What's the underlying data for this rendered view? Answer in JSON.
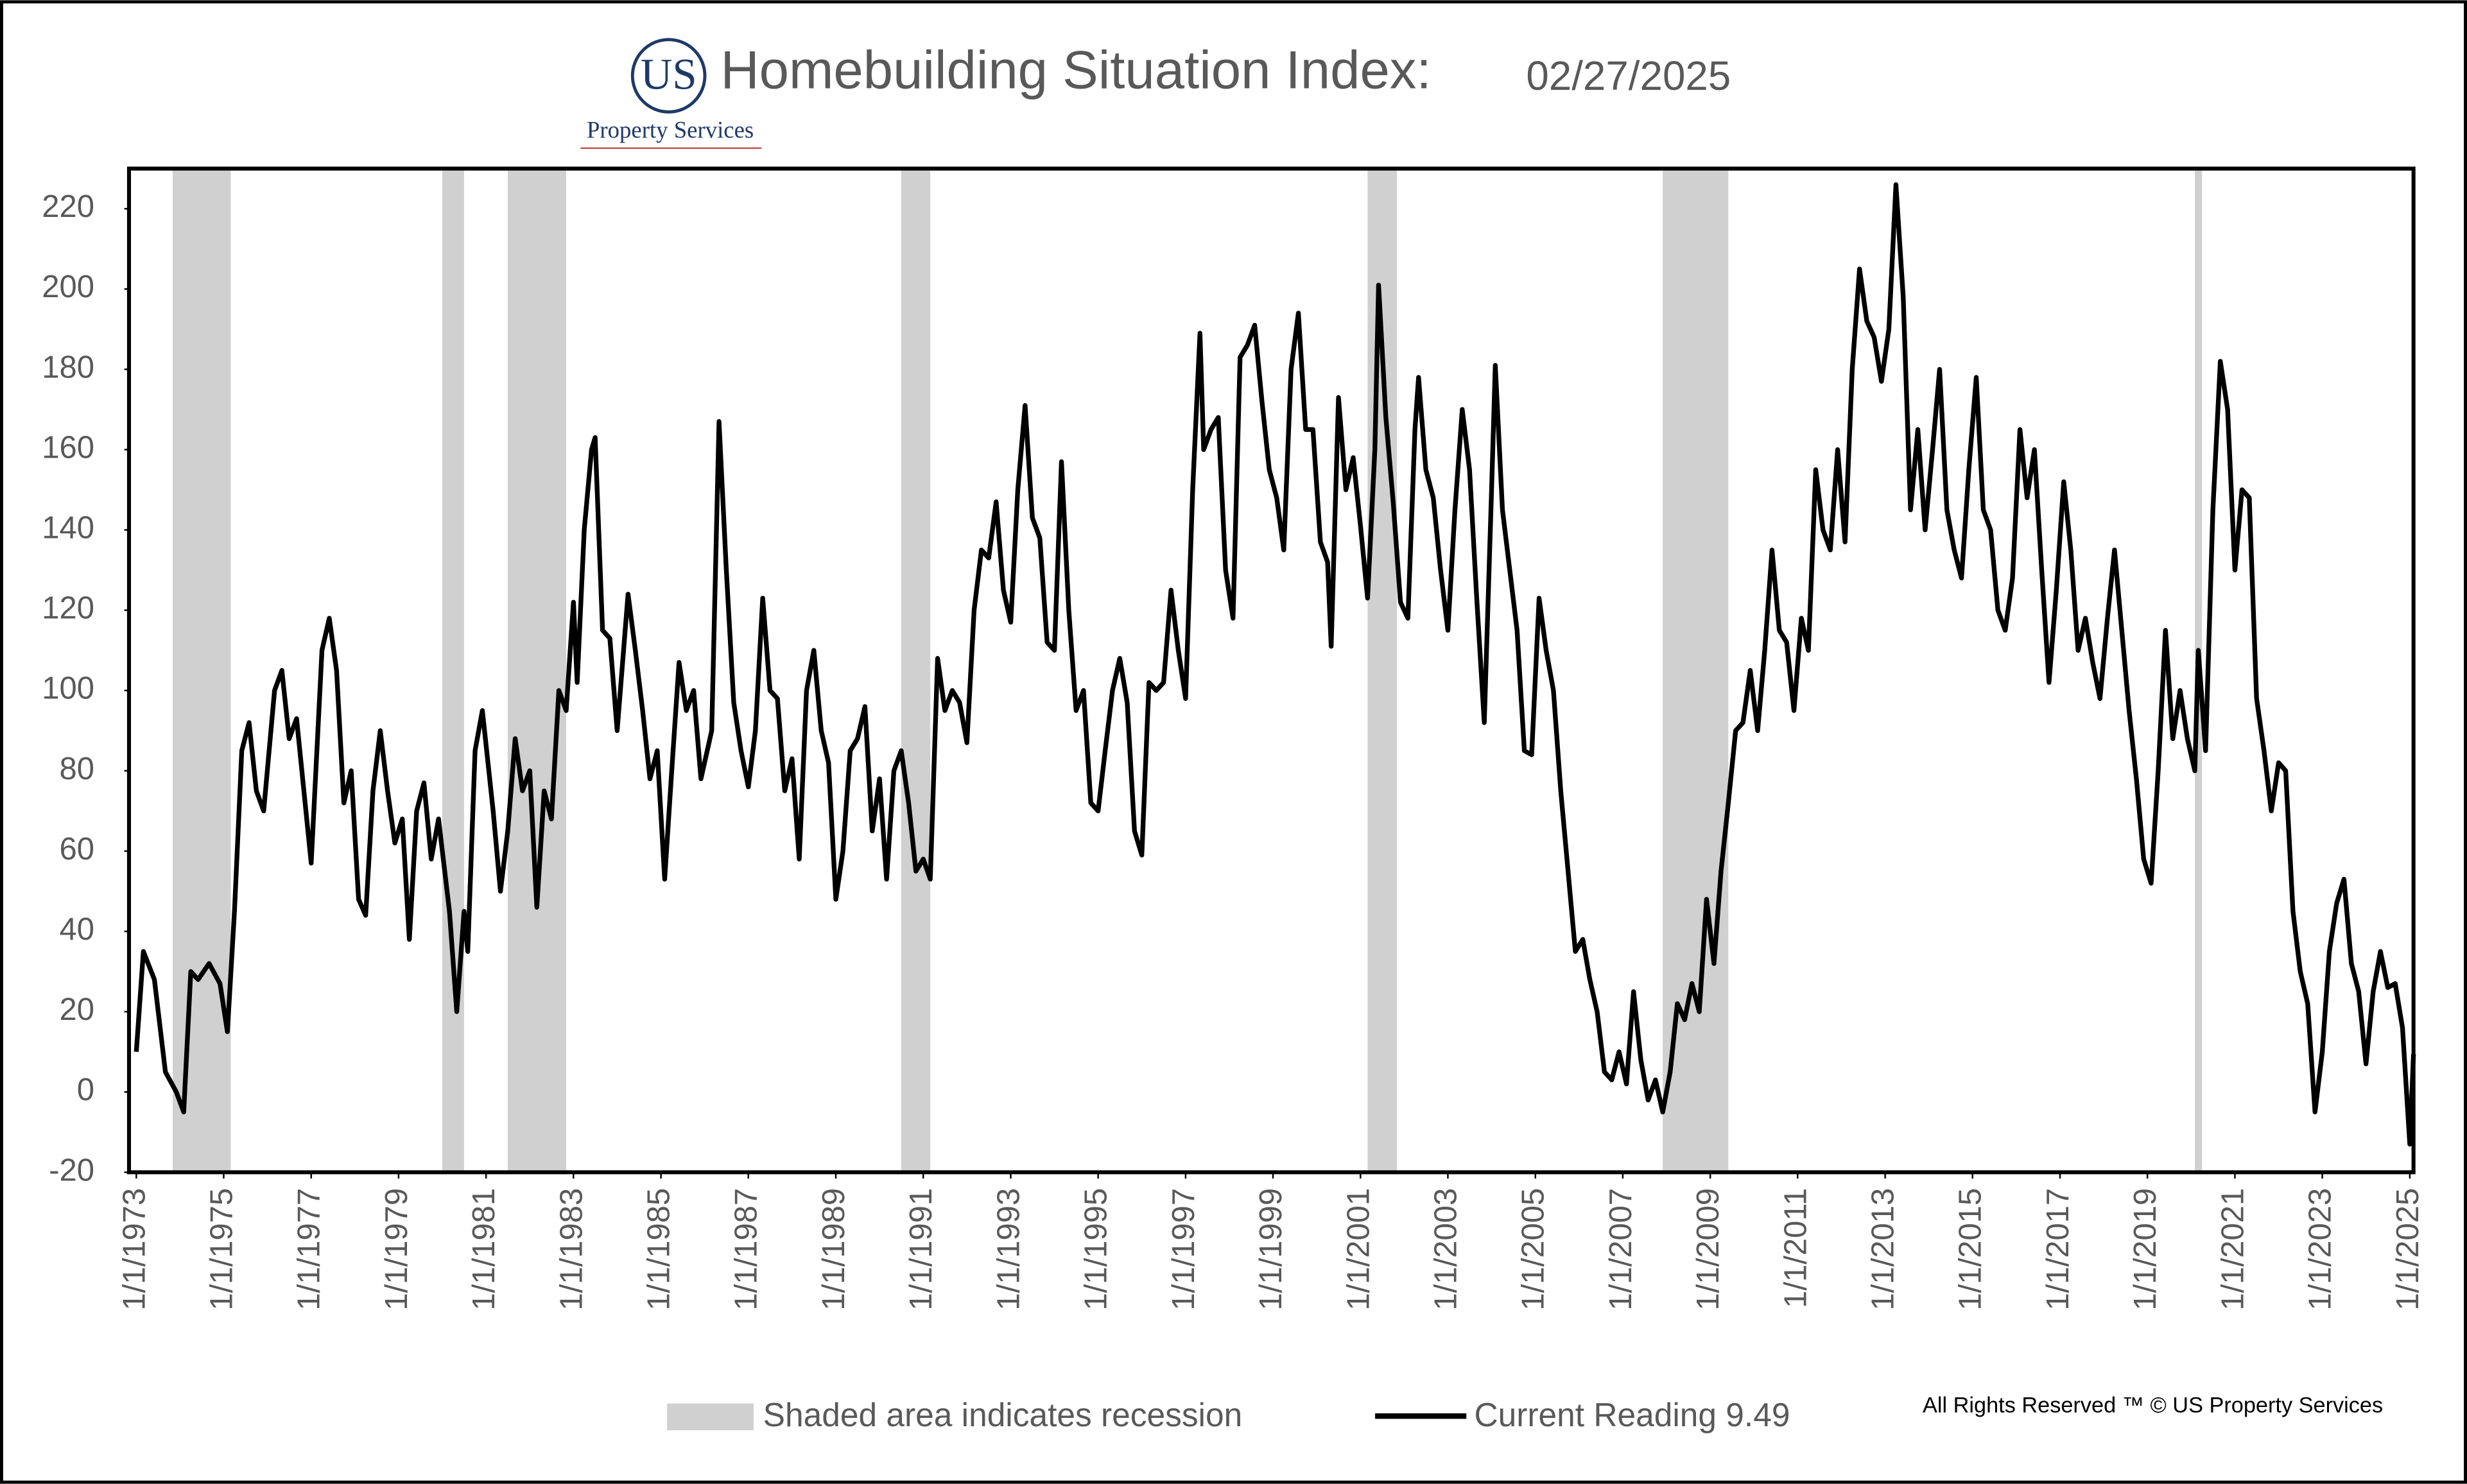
{
  "logo": {
    "mark": "US",
    "name": "Property Services"
  },
  "chart_data": {
    "type": "line",
    "title": "Homebuilding Situation Index:",
    "subtitle": "02/27/2025",
    "note": "All Rights Reserved ™ © US Property Services",
    "recession_label": "Shaded area indicates recession",
    "recession_color": "#d0d0d0",
    "recessions": [
      {
        "start": "11/1/1973",
        "end": "3/1/1975"
      },
      {
        "start": "1/1/1980",
        "end": "7/1/1980"
      },
      {
        "start": "7/1/1981",
        "end": "11/1/1982"
      },
      {
        "start": "7/1/1990",
        "end": "3/1/1991"
      },
      {
        "start": "3/1/2001",
        "end": "11/1/2001"
      },
      {
        "start": "12/1/2007",
        "end": "6/1/2009"
      },
      {
        "start": "2/1/2020",
        "end": "4/1/2020"
      }
    ],
    "x": [
      "1/1/1973",
      "3/1/1973",
      "6/1/1973",
      "9/1/1973",
      "12/1/1973",
      "2/1/1974",
      "4/1/1974",
      "6/1/1974",
      "9/1/1974",
      "12/1/1974",
      "2/1/1975",
      "4/1/1975",
      "6/1/1975",
      "8/1/1975",
      "10/1/1975",
      "12/1/1975",
      "3/1/1976",
      "5/1/1976",
      "7/1/1976",
      "9/1/1976",
      "11/1/1976",
      "1/1/1977",
      "4/1/1977",
      "6/1/1977",
      "8/1/1977",
      "10/1/1977",
      "12/1/1977",
      "2/1/1978",
      "4/1/1978",
      "6/1/1978",
      "8/1/1978",
      "10/1/1978",
      "12/1/1978",
      "2/1/1979",
      "4/1/1979",
      "6/1/1979",
      "8/1/1979",
      "10/1/1979",
      "12/1/1979",
      "3/1/1980",
      "5/1/1980",
      "7/1/1980",
      "8/1/1980",
      "10/1/1980",
      "12/1/1980",
      "3/1/1981",
      "5/1/1981",
      "7/1/1981",
      "9/1/1981",
      "11/1/1981",
      "1/1/1982",
      "3/1/1982",
      "5/1/1982",
      "7/1/1982",
      "9/1/1982",
      "11/1/1982",
      "1/1/1983",
      "2/1/1983",
      "4/1/1983",
      "6/1/1983",
      "7/1/1983",
      "9/1/1983",
      "11/1/1983",
      "1/1/1984",
      "4/1/1984",
      "6/1/1984",
      "8/1/1984",
      "10/1/1984",
      "12/1/1984",
      "2/1/1985",
      "4/1/1985",
      "6/1/1985",
      "8/1/1985",
      "10/1/1985",
      "12/1/1985",
      "3/1/1986",
      "5/1/1986",
      "7/1/1986",
      "9/1/1986",
      "11/1/1986",
      "1/1/1987",
      "3/1/1987",
      "5/1/1987",
      "7/1/1987",
      "9/1/1987",
      "11/1/1987",
      "1/1/1988",
      "3/1/1988",
      "5/1/1988",
      "7/1/1988",
      "9/1/1988",
      "11/1/1988",
      "1/1/1989",
      "3/1/1989",
      "5/1/1989",
      "7/1/1989",
      "9/1/1989",
      "11/1/1989",
      "1/1/1990",
      "3/1/1990",
      "5/1/1990",
      "7/1/1990",
      "9/1/1990",
      "11/1/1990",
      "1/1/1991",
      "3/1/1991",
      "5/1/1991",
      "7/1/1991",
      "9/1/1991",
      "11/1/1991",
      "1/1/1992",
      "3/1/1992",
      "5/1/1992",
      "7/1/1992",
      "9/1/1992",
      "11/1/1992",
      "1/1/1993",
      "3/1/1993",
      "5/1/1993",
      "7/1/1993",
      "9/1/1993",
      "11/1/1993",
      "1/1/1994",
      "3/1/1994",
      "5/1/1994",
      "7/1/1994",
      "9/1/1994",
      "11/1/1994",
      "1/1/1995",
      "3/1/1995",
      "5/1/1995",
      "7/1/1995",
      "9/1/1995",
      "11/1/1995",
      "1/1/1996",
      "3/1/1996",
      "5/1/1996",
      "7/1/1996",
      "9/1/1996",
      "11/1/1996",
      "1/1/1997",
      "3/1/1997",
      "5/1/1997",
      "6/1/1997",
      "8/1/1997",
      "10/1/1997",
      "12/1/1997",
      "2/1/1998",
      "4/1/1998",
      "6/1/1998",
      "8/1/1998",
      "10/1/1998",
      "12/1/1998",
      "2/1/1999",
      "4/1/1999",
      "6/1/1999",
      "8/1/1999",
      "10/1/1999",
      "12/1/1999",
      "2/1/2000",
      "4/1/2000",
      "5/1/2000",
      "7/1/2000",
      "9/1/2000",
      "11/1/2000",
      "1/1/2001",
      "3/1/2001",
      "5/1/2001",
      "6/1/2001",
      "8/1/2001",
      "10/1/2001",
      "12/1/2001",
      "2/1/2002",
      "4/1/2002",
      "5/1/2002",
      "7/1/2002",
      "9/1/2002",
      "11/1/2002",
      "1/1/2003",
      "3/1/2003",
      "5/1/2003",
      "7/1/2003",
      "9/1/2003",
      "11/1/2003",
      "1/1/2004",
      "2/1/2004",
      "4/1/2004",
      "6/1/2004",
      "8/1/2004",
      "10/1/2004",
      "12/1/2004",
      "2/1/2005",
      "4/1/2005",
      "6/1/2005",
      "8/1/2005",
      "10/1/2005",
      "12/1/2005",
      "2/1/2006",
      "4/1/2006",
      "6/1/2006",
      "8/1/2006",
      "10/1/2006",
      "12/1/2006",
      "2/1/2007",
      "4/1/2007",
      "6/1/2007",
      "8/1/2007",
      "10/1/2007",
      "12/1/2007",
      "2/1/2008",
      "4/1/2008",
      "6/1/2008",
      "8/1/2008",
      "10/1/2008",
      "12/1/2008",
      "2/1/2009",
      "4/1/2009",
      "6/1/2009",
      "8/1/2009",
      "10/1/2009",
      "12/1/2009",
      "2/1/2010",
      "4/1/2010",
      "6/1/2010",
      "8/1/2010",
      "10/1/2010",
      "12/1/2010",
      "2/1/2011",
      "4/1/2011",
      "6/1/2011",
      "8/1/2011",
      "10/1/2011",
      "12/1/2011",
      "2/1/2012",
      "4/1/2012",
      "6/1/2012",
      "8/1/2012",
      "10/1/2012",
      "12/1/2012",
      "2/1/2013",
      "4/1/2013",
      "6/1/2013",
      "8/1/2013",
      "10/1/2013",
      "12/1/2013",
      "2/1/2014",
      "4/1/2014",
      "6/1/2014",
      "8/1/2014",
      "10/1/2014",
      "12/1/2014",
      "2/1/2015",
      "4/1/2015",
      "6/1/2015",
      "8/1/2015",
      "10/1/2015",
      "12/1/2015",
      "2/1/2016",
      "4/1/2016",
      "6/1/2016",
      "8/1/2016",
      "10/1/2016",
      "12/1/2016",
      "2/1/2017",
      "4/1/2017",
      "6/1/2017",
      "8/1/2017",
      "10/1/2017",
      "12/1/2017",
      "2/1/2018",
      "4/1/2018",
      "6/1/2018",
      "8/1/2018",
      "10/1/2018",
      "12/1/2018",
      "2/1/2019",
      "4/1/2019",
      "6/1/2019",
      "8/1/2019",
      "10/1/2019",
      "12/1/2019",
      "2/1/2020",
      "3/1/2020",
      "5/1/2020",
      "7/1/2020",
      "9/1/2020",
      "11/1/2020",
      "1/1/2021",
      "3/1/2021",
      "5/1/2021",
      "7/1/2021",
      "9/1/2021",
      "11/1/2021",
      "1/1/2022",
      "3/1/2022",
      "5/1/2022",
      "7/1/2022",
      "9/1/2022",
      "11/1/2022",
      "1/1/2023",
      "3/1/2023",
      "5/1/2023",
      "7/1/2023",
      "9/1/2023",
      "11/1/2023",
      "1/1/2024",
      "3/1/2024",
      "5/1/2024",
      "7/1/2024",
      "9/1/2024",
      "11/1/2024",
      "1/1/2025",
      "2/1/2025"
    ],
    "series": [
      {
        "name": "Current Reading 9.49",
        "color": "#000000",
        "values": [
          10,
          35,
          28,
          5,
          0,
          -5,
          30,
          28,
          32,
          27,
          15,
          45,
          85,
          92,
          75,
          70,
          100,
          105,
          88,
          93,
          75,
          57,
          110,
          118,
          105,
          72,
          80,
          48,
          44,
          75,
          90,
          75,
          62,
          68,
          38,
          70,
          77,
          58,
          68,
          45,
          20,
          45,
          35,
          85,
          95,
          70,
          50,
          65,
          88,
          75,
          80,
          46,
          75,
          68,
          100,
          95,
          122,
          102,
          140,
          160,
          163,
          115,
          113,
          90,
          124,
          110,
          95,
          78,
          85,
          53,
          80,
          107,
          95,
          100,
          78,
          90,
          167,
          130,
          97,
          85,
          76,
          90,
          123,
          100,
          98,
          75,
          83,
          58,
          100,
          110,
          90,
          82,
          48,
          60,
          85,
          88,
          96,
          65,
          78,
          53,
          80,
          85,
          72,
          55,
          58,
          53,
          108,
          95,
          100,
          97,
          87,
          120,
          135,
          133,
          147,
          125,
          117,
          150,
          171,
          143,
          138,
          112,
          110,
          157,
          120,
          95,
          100,
          72,
          70,
          85,
          100,
          108,
          97,
          65,
          59,
          102,
          100,
          102,
          125,
          110,
          98,
          150,
          189,
          160,
          165,
          168,
          130,
          118,
          183,
          186,
          191,
          172,
          155,
          148,
          135,
          180,
          194,
          165,
          165,
          137,
          132,
          111,
          173,
          150,
          158,
          141,
          123,
          160,
          201,
          168,
          147,
          122,
          118,
          165,
          178,
          155,
          148,
          130,
          115,
          145,
          170,
          155,
          122,
          92,
          150,
          181,
          145,
          130,
          115,
          85,
          84,
          123,
          110,
          100,
          75,
          55,
          35,
          38,
          28,
          20,
          5,
          3,
          10,
          2,
          25,
          8,
          -2,
          3,
          -5,
          5,
          22,
          18,
          27,
          20,
          48,
          32,
          55,
          72,
          90,
          92,
          105,
          90,
          110,
          135,
          115,
          112,
          95,
          118,
          110,
          155,
          140,
          135,
          160,
          137,
          180,
          205,
          192,
          188,
          177,
          190,
          226,
          198,
          145,
          165,
          140,
          160,
          180,
          145,
          135,
          128,
          155,
          178,
          145,
          140,
          120,
          115,
          128,
          165,
          148,
          160,
          130,
          102,
          125,
          152,
          135,
          110,
          118,
          107,
          98,
          118,
          135,
          115,
          95,
          78,
          58,
          52,
          80,
          115,
          88,
          100,
          88,
          80,
          110,
          85,
          145,
          182,
          170,
          130,
          150,
          148,
          98,
          85,
          70,
          82,
          80,
          45,
          30,
          22,
          -5,
          10,
          35,
          47,
          53,
          32,
          25,
          7,
          25,
          35,
          26,
          27,
          16,
          -13,
          9.49
        ]
      }
    ],
    "xlim": [
      "11/1/1972",
      "2/1/2025"
    ],
    "xticks": [
      "1/1/1973",
      "1/1/1975",
      "1/1/1977",
      "1/1/1979",
      "1/1/1981",
      "1/1/1983",
      "1/1/1985",
      "1/1/1987",
      "1/1/1989",
      "1/1/1991",
      "1/1/1993",
      "1/1/1995",
      "1/1/1997",
      "1/1/1999",
      "1/1/2001",
      "1/1/2003",
      "1/1/2005",
      "1/1/2007",
      "1/1/2009",
      "1/1/2011",
      "1/1/2013",
      "1/1/2015",
      "1/1/2017",
      "1/1/2019",
      "1/1/2021",
      "1/1/2023",
      "1/1/2025"
    ],
    "ylim": [
      -20,
      230
    ],
    "yticks": [
      -20,
      0,
      20,
      40,
      60,
      80,
      100,
      120,
      140,
      160,
      180,
      200,
      220
    ]
  }
}
